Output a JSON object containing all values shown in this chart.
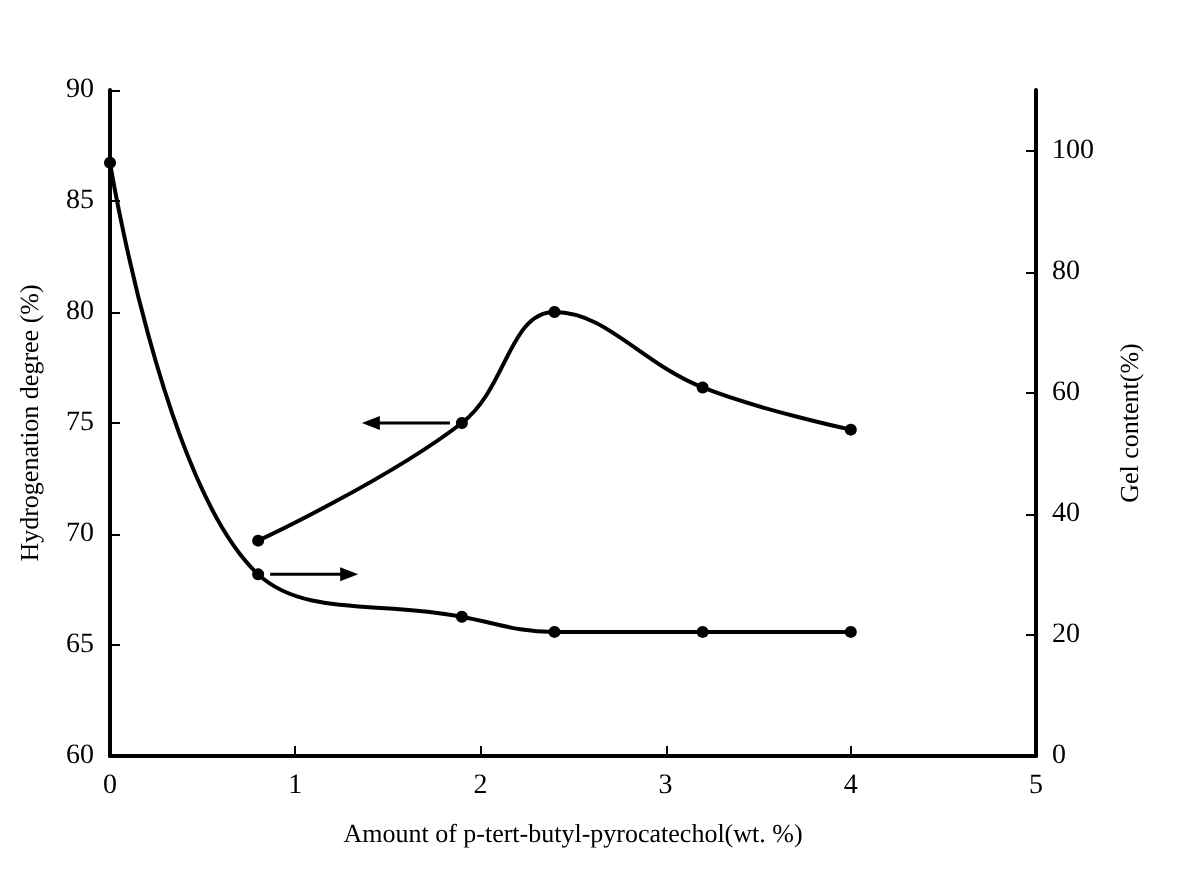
{
  "chart_data": {
    "type": "line",
    "xlabel": "Amount of p-tert-butyl-pyrocatechol(wt. %)",
    "ylabel": "Hydrogenation degree (%)",
    "y2label": "Gel content(%)",
    "xlim": [
      0,
      5
    ],
    "xticks": [
      0,
      1,
      2,
      3,
      4,
      5
    ],
    "ylim": [
      60,
      90
    ],
    "yticks": [
      60,
      65,
      70,
      75,
      80,
      85,
      90
    ],
    "y2lim": [
      0,
      110
    ],
    "y2ticks": [
      0,
      20,
      40,
      60,
      80,
      100
    ],
    "series": [
      {
        "color": "#000000",
        "x": [
          0.8,
          1.9,
          2.4,
          3.2,
          4
        ],
        "values": [
          69.7,
          75,
          80,
          76.6,
          74.7
        ]
      },
      {
        "color": "#000000",
        "axis": "y2",
        "x": [
          0,
          0.8,
          1.9,
          2.4,
          3.2,
          4
        ],
        "values": [
          98,
          30,
          23,
          20.5,
          20.5,
          20.5
        ]
      }
    ],
    "grid": false,
    "marker": "circle",
    "line_style": "solid"
  }
}
